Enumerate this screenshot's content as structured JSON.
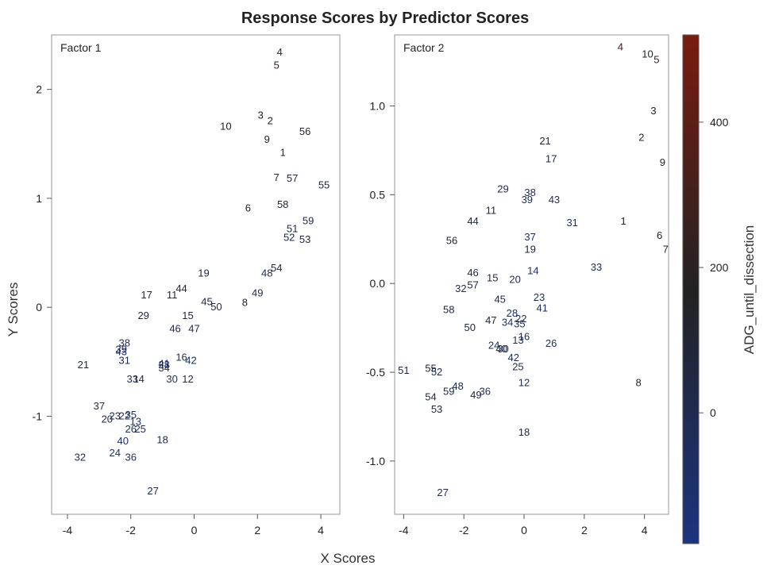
{
  "chart_data": {
    "type": "scatter",
    "title": "Response Scores by Predictor Scores",
    "xlabel": "X Scores",
    "ylabel": "Y Scores",
    "colorbar": {
      "label": "ADG_until_dissection",
      "range": [
        -180,
        520
      ],
      "ticks": [
        0,
        200,
        400
      ],
      "tick_labels": [
        "0",
        "200",
        "400"
      ],
      "colors": [
        "#1c3480",
        "#222222",
        "#7a1c10"
      ]
    },
    "panels": [
      {
        "label": "Factor 1",
        "xlim": [
          -4.5,
          4.6
        ],
        "ylim": [
          -1.9,
          2.5
        ],
        "xticks": [
          -4,
          -2,
          0,
          2,
          4
        ],
        "xtick_labels": [
          "-4",
          "-2",
          "0",
          "2",
          "4"
        ],
        "yticks": [
          -1,
          0,
          1,
          2
        ],
        "ytick_labels": [
          "-1",
          "0",
          "1",
          "2"
        ],
        "points": [
          {
            "label": "4",
            "x": 2.7,
            "y": 2.34,
            "c": 0.62
          },
          {
            "label": "5",
            "x": 2.6,
            "y": 2.22,
            "c": 0.6
          },
          {
            "label": "3",
            "x": 2.1,
            "y": 1.76,
            "c": 0.5
          },
          {
            "label": "2",
            "x": 2.4,
            "y": 1.71,
            "c": 0.48
          },
          {
            "label": "10",
            "x": 1.0,
            "y": 1.66,
            "c": 0.5
          },
          {
            "label": "56",
            "x": 3.5,
            "y": 1.61,
            "c": 0.4
          },
          {
            "label": "9",
            "x": 2.3,
            "y": 1.54,
            "c": 0.45
          },
          {
            "label": "1",
            "x": 2.8,
            "y": 1.42,
            "c": 0.42
          },
          {
            "label": "7",
            "x": 2.6,
            "y": 1.19,
            "c": 0.42
          },
          {
            "label": "57",
            "x": 3.1,
            "y": 1.18,
            "c": 0.35
          },
          {
            "label": "55",
            "x": 4.1,
            "y": 1.12,
            "c": 0.35
          },
          {
            "label": "6",
            "x": 1.7,
            "y": 0.91,
            "c": 0.45
          },
          {
            "label": "58",
            "x": 2.8,
            "y": 0.94,
            "c": 0.35
          },
          {
            "label": "59",
            "x": 3.6,
            "y": 0.79,
            "c": 0.3
          },
          {
            "label": "51",
            "x": 3.1,
            "y": 0.72,
            "c": 0.3
          },
          {
            "label": "52",
            "x": 3.0,
            "y": 0.64,
            "c": 0.3
          },
          {
            "label": "53",
            "x": 3.5,
            "y": 0.62,
            "c": 0.3
          },
          {
            "label": "54",
            "x": 2.6,
            "y": 0.36,
            "c": 0.3
          },
          {
            "label": "48",
            "x": 2.3,
            "y": 0.31,
            "c": 0.3
          },
          {
            "label": "19",
            "x": 0.3,
            "y": 0.31,
            "c": 0.35
          },
          {
            "label": "44",
            "x": -0.4,
            "y": 0.17,
            "c": 0.35
          },
          {
            "label": "11",
            "x": -0.7,
            "y": 0.11,
            "c": 0.35
          },
          {
            "label": "17",
            "x": -1.5,
            "y": 0.11,
            "c": 0.35
          },
          {
            "label": "49",
            "x": 2.0,
            "y": 0.13,
            "c": 0.3
          },
          {
            "label": "8",
            "x": 1.6,
            "y": 0.04,
            "c": 0.45
          },
          {
            "label": "45",
            "x": 0.4,
            "y": 0.05,
            "c": 0.3
          },
          {
            "label": "50",
            "x": 0.7,
            "y": 0.0,
            "c": 0.3
          },
          {
            "label": "29",
            "x": -1.6,
            "y": -0.08,
            "c": 0.3
          },
          {
            "label": "15",
            "x": -0.2,
            "y": -0.08,
            "c": 0.3
          },
          {
            "label": "46",
            "x": -0.6,
            "y": -0.2,
            "c": 0.3
          },
          {
            "label": "47",
            "x": 0.0,
            "y": -0.2,
            "c": 0.3
          },
          {
            "label": "38",
            "x": -2.2,
            "y": -0.33,
            "c": 0.25
          },
          {
            "label": "39",
            "x": -2.3,
            "y": -0.39,
            "c": 0.2
          },
          {
            "label": "43",
            "x": -2.3,
            "y": -0.41,
            "c": 0.15
          },
          {
            "label": "31",
            "x": -2.2,
            "y": -0.49,
            "c": 0.25
          },
          {
            "label": "21",
            "x": -3.5,
            "y": -0.53,
            "c": 0.35
          },
          {
            "label": "16",
            "x": -0.4,
            "y": -0.46,
            "c": 0.25
          },
          {
            "label": "42",
            "x": -0.1,
            "y": -0.49,
            "c": 0.25
          },
          {
            "label": "28",
            "x": -0.95,
            "y": -0.53,
            "c": 0.15
          },
          {
            "label": "41",
            "x": -0.95,
            "y": -0.52,
            "c": 0.2
          },
          {
            "label": "34",
            "x": -0.95,
            "y": -0.56,
            "c": 0.2
          },
          {
            "label": "33",
            "x": -1.95,
            "y": -0.66,
            "c": 0.2
          },
          {
            "label": "14",
            "x": -1.75,
            "y": -0.66,
            "c": 0.15
          },
          {
            "label": "30",
            "x": -0.7,
            "y": -0.66,
            "c": 0.25
          },
          {
            "label": "12",
            "x": -0.2,
            "y": -0.66,
            "c": 0.25
          },
          {
            "label": "37",
            "x": -3.0,
            "y": -0.91,
            "c": 0.25
          },
          {
            "label": "23",
            "x": -2.5,
            "y": -1.0,
            "c": 0.25
          },
          {
            "label": "35",
            "x": -2.0,
            "y": -0.99,
            "c": 0.15
          },
          {
            "label": "20",
            "x": -2.75,
            "y": -1.03,
            "c": 0.25
          },
          {
            "label": "22",
            "x": -2.2,
            "y": -1.0,
            "c": 0.2
          },
          {
            "label": "13",
            "x": -1.85,
            "y": -1.05,
            "c": 0.2
          },
          {
            "label": "26",
            "x": -2.0,
            "y": -1.12,
            "c": 0.2
          },
          {
            "label": "25",
            "x": -1.7,
            "y": -1.12,
            "c": 0.25
          },
          {
            "label": "40",
            "x": -2.25,
            "y": -1.23,
            "c": 0.15
          },
          {
            "label": "18",
            "x": -1.0,
            "y": -1.22,
            "c": 0.3
          },
          {
            "label": "24",
            "x": -2.5,
            "y": -1.34,
            "c": 0.2
          },
          {
            "label": "36",
            "x": -2.0,
            "y": -1.38,
            "c": 0.2
          },
          {
            "label": "32",
            "x": -3.6,
            "y": -1.38,
            "c": 0.25
          },
          {
            "label": "27",
            "x": -1.3,
            "y": -1.69,
            "c": 0.25
          }
        ]
      },
      {
        "label": "Factor 2",
        "xlim": [
          -4.3,
          4.8
        ],
        "ylim": [
          -1.3,
          1.4
        ],
        "xticks": [
          -4,
          -2,
          0,
          2,
          4
        ],
        "xtick_labels": [
          "-4",
          "-2",
          "0",
          "2",
          "4"
        ],
        "yticks": [
          -1.0,
          -0.5,
          0.0,
          0.5,
          1.0
        ],
        "ytick_labels": [
          "-1.0",
          "-0.5",
          "0.0",
          "0.5",
          "1.0"
        ],
        "points": [
          {
            "label": "4",
            "x": 3.2,
            "y": 1.33,
            "c": 0.62
          },
          {
            "label": "10",
            "x": 4.1,
            "y": 1.29,
            "c": 0.5
          },
          {
            "label": "5",
            "x": 4.4,
            "y": 1.26,
            "c": 0.6
          },
          {
            "label": "3",
            "x": 4.3,
            "y": 0.97,
            "c": 0.5
          },
          {
            "label": "2",
            "x": 3.9,
            "y": 0.82,
            "c": 0.48
          },
          {
            "label": "21",
            "x": 0.7,
            "y": 0.8,
            "c": 0.35
          },
          {
            "label": "9",
            "x": 4.6,
            "y": 0.68,
            "c": 0.45
          },
          {
            "label": "17",
            "x": 0.9,
            "y": 0.7,
            "c": 0.35
          },
          {
            "label": "29",
            "x": -0.7,
            "y": 0.53,
            "c": 0.3
          },
          {
            "label": "38",
            "x": 0.2,
            "y": 0.51,
            "c": 0.25
          },
          {
            "label": "39",
            "x": 0.1,
            "y": 0.47,
            "c": 0.2
          },
          {
            "label": "43",
            "x": 1.0,
            "y": 0.47,
            "c": 0.15
          },
          {
            "label": "11",
            "x": -1.1,
            "y": 0.41,
            "c": 0.35
          },
          {
            "label": "44",
            "x": -1.7,
            "y": 0.35,
            "c": 0.35
          },
          {
            "label": "31",
            "x": 1.6,
            "y": 0.34,
            "c": 0.25
          },
          {
            "label": "1",
            "x": 3.3,
            "y": 0.35,
            "c": 0.42
          },
          {
            "label": "6",
            "x": 4.5,
            "y": 0.27,
            "c": 0.45
          },
          {
            "label": "37",
            "x": 0.2,
            "y": 0.26,
            "c": 0.25
          },
          {
            "label": "56",
            "x": -2.4,
            "y": 0.24,
            "c": 0.4
          },
          {
            "label": "7",
            "x": 4.7,
            "y": 0.19,
            "c": 0.42
          },
          {
            "label": "19",
            "x": 0.2,
            "y": 0.19,
            "c": 0.35
          },
          {
            "label": "33",
            "x": 2.4,
            "y": 0.09,
            "c": 0.2
          },
          {
            "label": "14",
            "x": 0.3,
            "y": 0.07,
            "c": 0.15
          },
          {
            "label": "46",
            "x": -1.7,
            "y": 0.06,
            "c": 0.3
          },
          {
            "label": "15",
            "x": -1.05,
            "y": 0.03,
            "c": 0.3
          },
          {
            "label": "20",
            "x": -0.3,
            "y": 0.02,
            "c": 0.25
          },
          {
            "label": "32",
            "x": -2.1,
            "y": -0.03,
            "c": 0.25
          },
          {
            "label": "57",
            "x": -1.7,
            "y": -0.01,
            "c": 0.35
          },
          {
            "label": "23",
            "x": 0.5,
            "y": -0.08,
            "c": 0.25
          },
          {
            "label": "45",
            "x": -0.8,
            "y": -0.09,
            "c": 0.3
          },
          {
            "label": "41",
            "x": 0.6,
            "y": -0.14,
            "c": 0.2
          },
          {
            "label": "58",
            "x": -2.5,
            "y": -0.15,
            "c": 0.35
          },
          {
            "label": "28",
            "x": -0.4,
            "y": -0.17,
            "c": 0.15
          },
          {
            "label": "22",
            "x": -0.1,
            "y": -0.2,
            "c": 0.2
          },
          {
            "label": "47",
            "x": -1.1,
            "y": -0.21,
            "c": 0.3
          },
          {
            "label": "34",
            "x": -0.55,
            "y": -0.22,
            "c": 0.2
          },
          {
            "label": "35",
            "x": -0.15,
            "y": -0.23,
            "c": 0.15
          },
          {
            "label": "50",
            "x": -1.8,
            "y": -0.25,
            "c": 0.3
          },
          {
            "label": "13",
            "x": -0.2,
            "y": -0.32,
            "c": 0.2
          },
          {
            "label": "16",
            "x": 0.0,
            "y": -0.3,
            "c": 0.25
          },
          {
            "label": "26",
            "x": 0.9,
            "y": -0.34,
            "c": 0.2
          },
          {
            "label": "24",
            "x": -1.0,
            "y": -0.35,
            "c": 0.2
          },
          {
            "label": "30",
            "x": -0.7,
            "y": -0.37,
            "c": 0.25
          },
          {
            "label": "40",
            "x": -0.75,
            "y": -0.37,
            "c": 0.15
          },
          {
            "label": "42",
            "x": -0.35,
            "y": -0.42,
            "c": 0.25
          },
          {
            "label": "25",
            "x": -0.2,
            "y": -0.47,
            "c": 0.25
          },
          {
            "label": "51",
            "x": -4.0,
            "y": -0.49,
            "c": 0.3
          },
          {
            "label": "55",
            "x": -3.1,
            "y": -0.48,
            "c": 0.35
          },
          {
            "label": "52",
            "x": -2.9,
            "y": -0.5,
            "c": 0.3
          },
          {
            "label": "12",
            "x": 0.0,
            "y": -0.56,
            "c": 0.25
          },
          {
            "label": "8",
            "x": 3.8,
            "y": -0.56,
            "c": 0.45
          },
          {
            "label": "48",
            "x": -2.2,
            "y": -0.58,
            "c": 0.3
          },
          {
            "label": "59",
            "x": -2.5,
            "y": -0.61,
            "c": 0.3
          },
          {
            "label": "36",
            "x": -1.3,
            "y": -0.61,
            "c": 0.2
          },
          {
            "label": "49",
            "x": -1.6,
            "y": -0.63,
            "c": 0.3
          },
          {
            "label": "54",
            "x": -3.1,
            "y": -0.64,
            "c": 0.3
          },
          {
            "label": "53",
            "x": -2.9,
            "y": -0.71,
            "c": 0.3
          },
          {
            "label": "18",
            "x": 0.0,
            "y": -0.84,
            "c": 0.3
          },
          {
            "label": "27",
            "x": -2.7,
            "y": -1.18,
            "c": 0.25
          }
        ]
      }
    ]
  }
}
